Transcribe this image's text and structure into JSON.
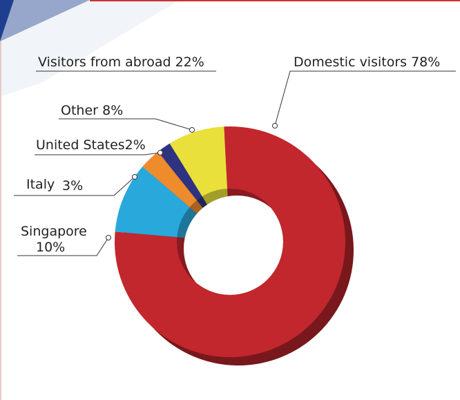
{
  "chart_data": {
    "type": "donut",
    "annotations": [
      "Visitors from abroad 22%"
    ],
    "categories": [
      "Domestic visitors",
      "Singapore",
      "Italy",
      "United States",
      "Other"
    ],
    "values": [
      78,
      10,
      3,
      2,
      8
    ],
    "value_labels": [
      "78%",
      "10%",
      "3%",
      "2%",
      "8%"
    ],
    "colors": [
      "#c1272d",
      "#29a8dc",
      "#ee8c2d",
      "#2e3381",
      "#e9e03c"
    ]
  }
}
